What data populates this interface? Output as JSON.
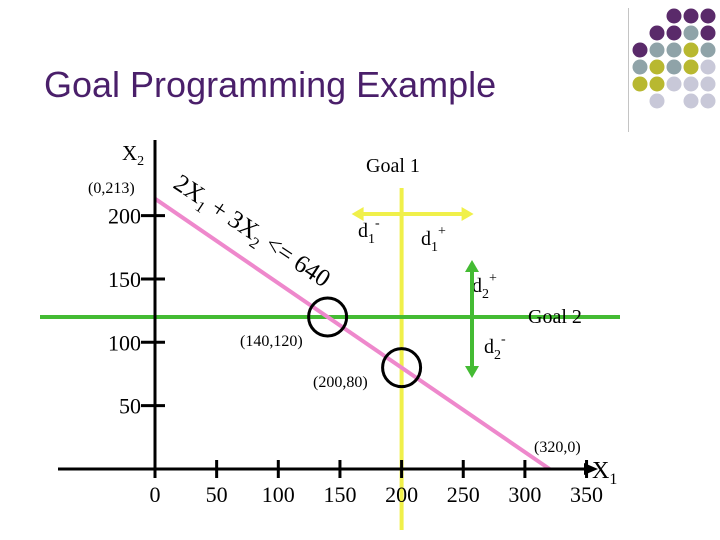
{
  "title": "Goal Programming Example",
  "axes": {
    "x_label": "X",
    "x_sub": "1",
    "y_label": "X",
    "y_sub": "2",
    "x_ticks": [
      {
        "value": 0,
        "label": "0"
      },
      {
        "value": 50,
        "label": "50"
      },
      {
        "value": 100,
        "label": "100"
      },
      {
        "value": 150,
        "label": "150"
      },
      {
        "value": 200,
        "label": "200"
      },
      {
        "value": 250,
        "label": "250"
      },
      {
        "value": 300,
        "label": "300"
      },
      {
        "value": 350,
        "label": "350"
      }
    ],
    "y_ticks": [
      {
        "value": 50,
        "label": "50"
      },
      {
        "value": 100,
        "label": "100"
      },
      {
        "value": 150,
        "label": "150"
      },
      {
        "value": 200,
        "label": "200"
      }
    ]
  },
  "constraint": {
    "from": [
      0,
      213.33
    ],
    "to": [
      320,
      0
    ],
    "color": "#ee88cc",
    "equation": {
      "p1": "2X",
      "s1": "1",
      "p2": " + 3X",
      "s2": "2",
      "p3": " <= 640"
    }
  },
  "goal1": {
    "label": "Goal 1",
    "x": 200,
    "color": "#f0f04a"
  },
  "goal2": {
    "label": "Goal 2",
    "y": 120,
    "color": "#44bb33"
  },
  "deviations": {
    "d1": {
      "minus_base": "d",
      "minus_sub": "1",
      "minus_sup": "-",
      "plus_base": "d",
      "plus_sub": "1",
      "plus_sup": "+"
    },
    "d2": {
      "minus_base": "d",
      "minus_sub": "2",
      "minus_sup": "-",
      "plus_base": "d",
      "plus_sub": "2",
      "plus_sup": "+"
    }
  },
  "points": [
    {
      "label": "(0,213)",
      "x": 0,
      "y": 213,
      "circled": false
    },
    {
      "label": "(140,120)",
      "x": 140,
      "y": 120,
      "circled": true
    },
    {
      "label": "(200,80)",
      "x": 200,
      "y": 80,
      "circled": true
    },
    {
      "label": "(320,0)",
      "x": 320,
      "y": 0,
      "circled": false
    }
  ],
  "decoration": {
    "colors": [
      "#5a2a6a",
      "#8fa3a8",
      "#b8b830",
      "#c8c8d8"
    ]
  }
}
